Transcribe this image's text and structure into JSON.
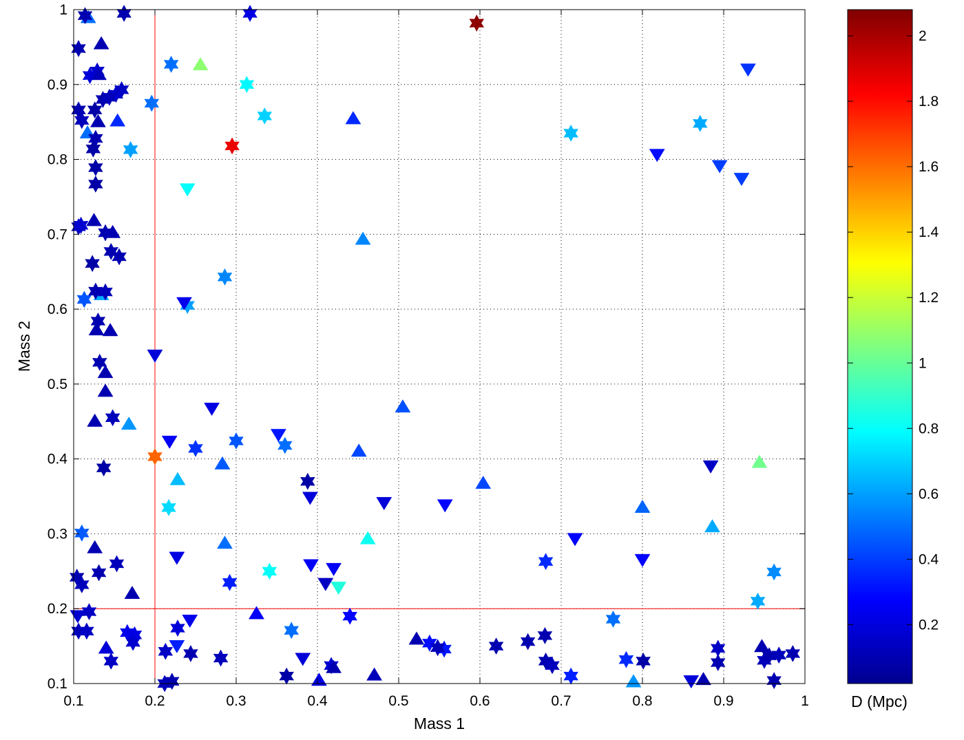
{
  "chart_data": {
    "type": "scatter",
    "title": "",
    "xlabel": "Mass 1",
    "ylabel": "Mass 2",
    "xlim": [
      0.1,
      1
    ],
    "ylim": [
      0.1,
      1
    ],
    "x_ticks": [
      "0.1",
      "0.2",
      "0.3",
      "0.4",
      "0.5",
      "0.6",
      "0.7",
      "0.8",
      "0.9",
      "1"
    ],
    "y_ticks": [
      "0.1",
      "0.2",
      "0.3",
      "0.4",
      "0.5",
      "0.6",
      "0.7",
      "0.8",
      "0.9",
      "1"
    ],
    "grid": true,
    "colormap": "jet",
    "colorbar": {
      "label": "D (Mpc)",
      "range": [
        0.02,
        2.08
      ],
      "ticks": [
        "0.2",
        "0.4",
        "0.6",
        "0.8",
        "1",
        "1.2",
        "1.4",
        "1.6",
        "1.8",
        "2"
      ]
    },
    "reference_lines": [
      {
        "orientation": "vertical",
        "x": 0.2,
        "color": "#ff0000"
      },
      {
        "orientation": "horizontal",
        "y": 0.2,
        "color": "#ff0000"
      }
    ],
    "points": [
      {
        "x": 0.596,
        "y": 0.982,
        "marker": "star",
        "d": 2.05
      },
      {
        "x": 0.295,
        "y": 0.818,
        "marker": "star",
        "d": 1.86
      },
      {
        "x": 0.2,
        "y": 0.403,
        "marker": "star",
        "d": 1.62
      },
      {
        "x": 0.256,
        "y": 0.927,
        "marker": "triangle-up",
        "d": 1.08
      },
      {
        "x": 0.944,
        "y": 0.396,
        "marker": "triangle-up",
        "d": 1.02
      },
      {
        "x": 0.313,
        "y": 0.9,
        "marker": "star",
        "d": 0.78
      },
      {
        "x": 0.24,
        "y": 0.76,
        "marker": "triangle-down",
        "d": 0.8
      },
      {
        "x": 0.426,
        "y": 0.228,
        "marker": "triangle-down",
        "d": 0.86
      },
      {
        "x": 0.462,
        "y": 0.294,
        "marker": "triangle-up",
        "d": 0.82
      },
      {
        "x": 0.341,
        "y": 0.25,
        "marker": "star",
        "d": 0.8
      },
      {
        "x": 0.335,
        "y": 0.858,
        "marker": "star",
        "d": 0.7
      },
      {
        "x": 0.217,
        "y": 0.335,
        "marker": "star",
        "d": 0.72
      },
      {
        "x": 0.228,
        "y": 0.373,
        "marker": "triangle-up",
        "d": 0.66
      },
      {
        "x": 0.712,
        "y": 0.835,
        "marker": "star",
        "d": 0.66
      },
      {
        "x": 0.871,
        "y": 0.848,
        "marker": "star",
        "d": 0.62
      },
      {
        "x": 0.886,
        "y": 0.31,
        "marker": "triangle-up",
        "d": 0.62
      },
      {
        "x": 0.942,
        "y": 0.21,
        "marker": "star",
        "d": 0.62
      },
      {
        "x": 0.962,
        "y": 0.249,
        "marker": "star",
        "d": 0.56
      },
      {
        "x": 0.17,
        "y": 0.813,
        "marker": "star",
        "d": 0.6
      },
      {
        "x": 0.168,
        "y": 0.447,
        "marker": "triangle-up",
        "d": 0.58
      },
      {
        "x": 0.24,
        "y": 0.605,
        "marker": "star",
        "d": 0.6
      },
      {
        "x": 0.286,
        "y": 0.643,
        "marker": "star",
        "d": 0.55
      },
      {
        "x": 0.134,
        "y": 0.62,
        "marker": "triangle-up",
        "d": 0.62
      },
      {
        "x": 0.456,
        "y": 0.694,
        "marker": "triangle-up",
        "d": 0.55
      },
      {
        "x": 0.118,
        "y": 0.99,
        "marker": "triangle-up",
        "d": 0.5
      },
      {
        "x": 0.196,
        "y": 0.875,
        "marker": "star",
        "d": 0.5
      },
      {
        "x": 0.22,
        "y": 0.927,
        "marker": "star",
        "d": 0.5
      },
      {
        "x": 0.117,
        "y": 0.836,
        "marker": "triangle-up",
        "d": 0.5
      },
      {
        "x": 0.113,
        "y": 0.613,
        "marker": "star",
        "d": 0.45
      },
      {
        "x": 0.11,
        "y": 0.301,
        "marker": "star",
        "d": 0.46
      },
      {
        "x": 0.286,
        "y": 0.288,
        "marker": "triangle-up",
        "d": 0.5
      },
      {
        "x": 0.283,
        "y": 0.394,
        "marker": "triangle-up",
        "d": 0.46
      },
      {
        "x": 0.3,
        "y": 0.424,
        "marker": "star",
        "d": 0.45
      },
      {
        "x": 0.36,
        "y": 0.418,
        "marker": "star",
        "d": 0.5
      },
      {
        "x": 0.368,
        "y": 0.171,
        "marker": "star",
        "d": 0.5
      },
      {
        "x": 0.789,
        "y": 0.103,
        "marker": "triangle-up",
        "d": 0.58
      },
      {
        "x": 0.764,
        "y": 0.186,
        "marker": "star",
        "d": 0.5
      },
      {
        "x": 0.8,
        "y": 0.336,
        "marker": "triangle-up",
        "d": 0.48
      },
      {
        "x": 0.505,
        "y": 0.47,
        "marker": "triangle-up",
        "d": 0.44
      },
      {
        "x": 0.451,
        "y": 0.411,
        "marker": "triangle-up",
        "d": 0.42
      },
      {
        "x": 0.604,
        "y": 0.368,
        "marker": "triangle-up",
        "d": 0.42
      },
      {
        "x": 0.444,
        "y": 0.855,
        "marker": "triangle-up",
        "d": 0.36
      },
      {
        "x": 0.154,
        "y": 0.852,
        "marker": "triangle-up",
        "d": 0.36
      },
      {
        "x": 0.895,
        "y": 0.791,
        "marker": "triangle-down",
        "d": 0.4
      },
      {
        "x": 0.922,
        "y": 0.774,
        "marker": "triangle-down",
        "d": 0.4
      },
      {
        "x": 0.93,
        "y": 0.92,
        "marker": "triangle-down",
        "d": 0.38
      },
      {
        "x": 0.25,
        "y": 0.414,
        "marker": "star",
        "d": 0.38
      },
      {
        "x": 0.681,
        "y": 0.263,
        "marker": "star",
        "d": 0.36
      },
      {
        "x": 0.78,
        "y": 0.132,
        "marker": "star",
        "d": 0.36
      },
      {
        "x": 0.712,
        "y": 0.11,
        "marker": "star",
        "d": 0.34
      },
      {
        "x": 0.292,
        "y": 0.235,
        "marker": "star",
        "d": 0.34
      },
      {
        "x": 0.227,
        "y": 0.15,
        "marker": "triangle-down",
        "d": 0.34
      },
      {
        "x": 0.352,
        "y": 0.432,
        "marker": "triangle-down",
        "d": 0.32
      },
      {
        "x": 0.556,
        "y": 0.146,
        "marker": "star",
        "d": 0.32
      },
      {
        "x": 0.538,
        "y": 0.154,
        "marker": "star",
        "d": 0.3
      },
      {
        "x": 0.818,
        "y": 0.806,
        "marker": "triangle-down",
        "d": 0.3
      },
      {
        "x": 0.557,
        "y": 0.338,
        "marker": "triangle-down",
        "d": 0.28
      },
      {
        "x": 0.717,
        "y": 0.293,
        "marker": "triangle-down",
        "d": 0.28
      },
      {
        "x": 0.8,
        "y": 0.265,
        "marker": "triangle-down",
        "d": 0.28
      },
      {
        "x": 0.392,
        "y": 0.258,
        "marker": "triangle-down",
        "d": 0.26
      },
      {
        "x": 0.42,
        "y": 0.253,
        "marker": "triangle-down",
        "d": 0.26
      },
      {
        "x": 0.44,
        "y": 0.19,
        "marker": "star",
        "d": 0.28
      },
      {
        "x": 0.236,
        "y": 0.608,
        "marker": "triangle-down",
        "d": 0.24
      },
      {
        "x": 0.218,
        "y": 0.423,
        "marker": "triangle-down",
        "d": 0.26
      },
      {
        "x": 0.27,
        "y": 0.467,
        "marker": "triangle-down",
        "d": 0.22
      },
      {
        "x": 0.325,
        "y": 0.194,
        "marker": "triangle-up",
        "d": 0.26
      },
      {
        "x": 0.243,
        "y": 0.184,
        "marker": "triangle-down",
        "d": 0.24
      },
      {
        "x": 0.227,
        "y": 0.268,
        "marker": "triangle-down",
        "d": 0.22
      },
      {
        "x": 0.2,
        "y": 0.538,
        "marker": "triangle-down",
        "d": 0.2
      },
      {
        "x": 0.391,
        "y": 0.348,
        "marker": "triangle-down",
        "d": 0.2
      },
      {
        "x": 0.482,
        "y": 0.341,
        "marker": "triangle-down",
        "d": 0.2
      },
      {
        "x": 0.884,
        "y": 0.39,
        "marker": "triangle-down",
        "d": 0.16
      },
      {
        "x": 0.41,
        "y": 0.233,
        "marker": "triangle-down",
        "d": 0.16
      },
      {
        "x": 0.382,
        "y": 0.133,
        "marker": "triangle-down",
        "d": 0.2
      },
      {
        "x": 0.402,
        "y": 0.105,
        "marker": "triangle-up",
        "d": 0.22
      },
      {
        "x": 0.86,
        "y": 0.103,
        "marker": "triangle-down",
        "d": 0.2
      },
      {
        "x": 0.388,
        "y": 0.37,
        "marker": "star",
        "d": 0.1
      },
      {
        "x": 0.114,
        "y": 0.992,
        "marker": "star",
        "d": 0.12
      },
      {
        "x": 0.162,
        "y": 0.995,
        "marker": "star",
        "d": 0.12
      },
      {
        "x": 0.317,
        "y": 0.995,
        "marker": "star",
        "d": 0.22
      },
      {
        "x": 0.106,
        "y": 0.948,
        "marker": "star",
        "d": 0.12
      },
      {
        "x": 0.134,
        "y": 0.955,
        "marker": "triangle-up",
        "d": 0.12
      },
      {
        "x": 0.12,
        "y": 0.912,
        "marker": "star",
        "d": 0.2
      },
      {
        "x": 0.129,
        "y": 0.918,
        "marker": "star",
        "d": 0.18
      },
      {
        "x": 0.131,
        "y": 0.914,
        "marker": "triangle-up",
        "d": 0.14
      },
      {
        "x": 0.152,
        "y": 0.887,
        "marker": "star",
        "d": 0.18
      },
      {
        "x": 0.159,
        "y": 0.893,
        "marker": "star",
        "d": 0.16
      },
      {
        "x": 0.136,
        "y": 0.88,
        "marker": "star",
        "d": 0.12
      },
      {
        "x": 0.144,
        "y": 0.883,
        "marker": "star",
        "d": 0.14
      },
      {
        "x": 0.106,
        "y": 0.866,
        "marker": "star",
        "d": 0.12
      },
      {
        "x": 0.11,
        "y": 0.852,
        "marker": "star",
        "d": 0.14
      },
      {
        "x": 0.126,
        "y": 0.866,
        "marker": "star",
        "d": 0.1
      },
      {
        "x": 0.13,
        "y": 0.851,
        "marker": "triangle-up",
        "d": 0.12
      },
      {
        "x": 0.127,
        "y": 0.828,
        "marker": "star",
        "d": 0.12
      },
      {
        "x": 0.124,
        "y": 0.814,
        "marker": "star",
        "d": 0.1
      },
      {
        "x": 0.127,
        "y": 0.789,
        "marker": "star",
        "d": 0.1
      },
      {
        "x": 0.127,
        "y": 0.767,
        "marker": "star",
        "d": 0.1
      },
      {
        "x": 0.106,
        "y": 0.71,
        "marker": "star",
        "d": 0.16
      },
      {
        "x": 0.109,
        "y": 0.712,
        "marker": "star",
        "d": 0.18
      },
      {
        "x": 0.125,
        "y": 0.719,
        "marker": "triangle-up",
        "d": 0.12
      },
      {
        "x": 0.139,
        "y": 0.702,
        "marker": "star",
        "d": 0.12
      },
      {
        "x": 0.148,
        "y": 0.703,
        "marker": "triangle-up",
        "d": 0.12
      },
      {
        "x": 0.146,
        "y": 0.677,
        "marker": "star",
        "d": 0.12
      },
      {
        "x": 0.156,
        "y": 0.67,
        "marker": "star",
        "d": 0.12
      },
      {
        "x": 0.123,
        "y": 0.661,
        "marker": "star",
        "d": 0.1
      },
      {
        "x": 0.127,
        "y": 0.624,
        "marker": "star",
        "d": 0.12
      },
      {
        "x": 0.139,
        "y": 0.623,
        "marker": "star",
        "d": 0.14
      },
      {
        "x": 0.13,
        "y": 0.584,
        "marker": "star",
        "d": 0.12
      },
      {
        "x": 0.128,
        "y": 0.573,
        "marker": "triangle-up",
        "d": 0.12
      },
      {
        "x": 0.145,
        "y": 0.572,
        "marker": "triangle-up",
        "d": 0.12
      },
      {
        "x": 0.132,
        "y": 0.529,
        "marker": "star",
        "d": 0.12
      },
      {
        "x": 0.139,
        "y": 0.516,
        "marker": "triangle-up",
        "d": 0.12
      },
      {
        "x": 0.139,
        "y": 0.491,
        "marker": "triangle-up",
        "d": 0.12
      },
      {
        "x": 0.126,
        "y": 0.451,
        "marker": "triangle-up",
        "d": 0.12
      },
      {
        "x": 0.148,
        "y": 0.455,
        "marker": "star",
        "d": 0.14
      },
      {
        "x": 0.137,
        "y": 0.388,
        "marker": "star",
        "d": 0.1
      },
      {
        "x": 0.126,
        "y": 0.282,
        "marker": "triangle-up",
        "d": 0.12
      },
      {
        "x": 0.131,
        "y": 0.248,
        "marker": "star",
        "d": 0.12
      },
      {
        "x": 0.153,
        "y": 0.26,
        "marker": "star",
        "d": 0.14
      },
      {
        "x": 0.104,
        "y": 0.242,
        "marker": "star",
        "d": 0.12
      },
      {
        "x": 0.11,
        "y": 0.232,
        "marker": "star",
        "d": 0.14
      },
      {
        "x": 0.172,
        "y": 0.221,
        "marker": "triangle-up",
        "d": 0.12
      },
      {
        "x": 0.105,
        "y": 0.19,
        "marker": "triangle-down",
        "d": 0.18
      },
      {
        "x": 0.119,
        "y": 0.196,
        "marker": "star",
        "d": 0.16
      },
      {
        "x": 0.106,
        "y": 0.17,
        "marker": "star",
        "d": 0.14
      },
      {
        "x": 0.116,
        "y": 0.17,
        "marker": "star",
        "d": 0.16
      },
      {
        "x": 0.166,
        "y": 0.168,
        "marker": "star",
        "d": 0.24
      },
      {
        "x": 0.175,
        "y": 0.165,
        "marker": "star",
        "d": 0.22
      },
      {
        "x": 0.173,
        "y": 0.155,
        "marker": "star",
        "d": 0.18
      },
      {
        "x": 0.14,
        "y": 0.148,
        "marker": "triangle-up",
        "d": 0.2
      },
      {
        "x": 0.146,
        "y": 0.13,
        "marker": "star",
        "d": 0.16
      },
      {
        "x": 0.213,
        "y": 0.143,
        "marker": "star",
        "d": 0.16
      },
      {
        "x": 0.228,
        "y": 0.174,
        "marker": "star",
        "d": 0.2
      },
      {
        "x": 0.244,
        "y": 0.14,
        "marker": "star",
        "d": 0.12
      },
      {
        "x": 0.212,
        "y": 0.1,
        "marker": "star",
        "d": 0.14
      },
      {
        "x": 0.221,
        "y": 0.103,
        "marker": "star",
        "d": 0.12
      },
      {
        "x": 0.281,
        "y": 0.134,
        "marker": "star",
        "d": 0.14
      },
      {
        "x": 0.362,
        "y": 0.11,
        "marker": "star",
        "d": 0.1
      },
      {
        "x": 0.417,
        "y": 0.124,
        "marker": "star",
        "d": 0.18
      },
      {
        "x": 0.42,
        "y": 0.122,
        "marker": "triangle-up",
        "d": 0.12
      },
      {
        "x": 0.47,
        "y": 0.112,
        "marker": "triangle-up",
        "d": 0.14
      },
      {
        "x": 0.522,
        "y": 0.16,
        "marker": "triangle-up",
        "d": 0.12
      },
      {
        "x": 0.548,
        "y": 0.148,
        "marker": "star",
        "d": 0.14
      },
      {
        "x": 0.62,
        "y": 0.15,
        "marker": "star",
        "d": 0.12
      },
      {
        "x": 0.659,
        "y": 0.156,
        "marker": "star",
        "d": 0.12
      },
      {
        "x": 0.68,
        "y": 0.164,
        "marker": "star",
        "d": 0.12
      },
      {
        "x": 0.681,
        "y": 0.13,
        "marker": "star",
        "d": 0.12
      },
      {
        "x": 0.689,
        "y": 0.124,
        "marker": "star",
        "d": 0.14
      },
      {
        "x": 0.801,
        "y": 0.13,
        "marker": "star",
        "d": 0.1
      },
      {
        "x": 0.875,
        "y": 0.106,
        "marker": "triangle-up",
        "d": 0.12
      },
      {
        "x": 0.893,
        "y": 0.147,
        "marker": "star",
        "d": 0.16
      },
      {
        "x": 0.893,
        "y": 0.128,
        "marker": "star",
        "d": 0.12
      },
      {
        "x": 0.947,
        "y": 0.15,
        "marker": "triangle-up",
        "d": 0.12
      },
      {
        "x": 0.95,
        "y": 0.131,
        "marker": "star",
        "d": 0.14
      },
      {
        "x": 0.956,
        "y": 0.137,
        "marker": "star",
        "d": 0.12
      },
      {
        "x": 0.968,
        "y": 0.138,
        "marker": "star",
        "d": 0.14
      },
      {
        "x": 0.985,
        "y": 0.14,
        "marker": "star",
        "d": 0.12
      },
      {
        "x": 0.962,
        "y": 0.104,
        "marker": "star",
        "d": 0.12
      }
    ]
  }
}
